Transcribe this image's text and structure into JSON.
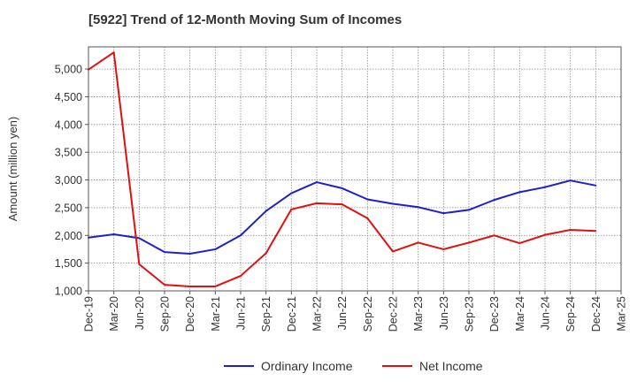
{
  "chart_data": {
    "type": "line",
    "title": "[5922]  Trend of 12-Month Moving Sum of Incomes",
    "xlabel": "",
    "ylabel": "Amount (million yen)",
    "ylim": [
      1000,
      5400
    ],
    "yticks": [
      1000,
      1500,
      2000,
      2500,
      3000,
      3500,
      4000,
      4500,
      5000
    ],
    "ytick_labels": [
      "1,000",
      "1,500",
      "2,000",
      "2,500",
      "3,000",
      "3,500",
      "4,000",
      "4,500",
      "5,000"
    ],
    "categories": [
      "Dec-19",
      "Mar-20",
      "Jun-20",
      "Sep-20",
      "Dec-20",
      "Mar-21",
      "Jun-21",
      "Sep-21",
      "Dec-21",
      "Mar-22",
      "Jun-22",
      "Sep-22",
      "Dec-22",
      "Mar-23",
      "Jun-23",
      "Sep-23",
      "Dec-23",
      "Mar-24",
      "Jun-24",
      "Sep-24",
      "Dec-24",
      "Mar-25"
    ],
    "grid": true,
    "legend_position": "bottom",
    "series": [
      {
        "name": "Ordinary Income",
        "color": "#1f1fd0",
        "values": [
          1960,
          2020,
          1950,
          1700,
          1670,
          1750,
          2000,
          2440,
          2760,
          2960,
          2850,
          2650,
          2570,
          2510,
          2400,
          2460,
          2640,
          2780,
          2870,
          2990,
          2900,
          null
        ]
      },
      {
        "name": "Net Income",
        "color": "#e01010",
        "values": [
          4990,
          5300,
          1480,
          1110,
          1080,
          1080,
          1270,
          1680,
          2470,
          2580,
          2560,
          2310,
          1710,
          1870,
          1750,
          1870,
          2000,
          1860,
          2010,
          2100,
          2080,
          null
        ]
      }
    ]
  }
}
